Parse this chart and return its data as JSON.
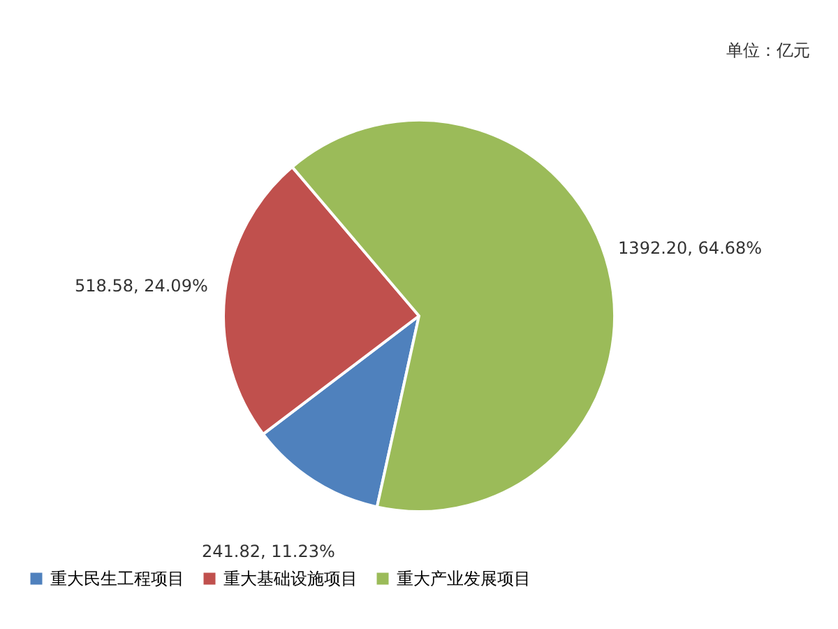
{
  "chart_data": {
    "type": "pie",
    "annotations": [
      "单位：亿元"
    ],
    "categories": [
      "重大民生工程项目",
      "重大基础设施项目",
      "重大产业发展项目"
    ],
    "values": [
      241.82,
      518.58,
      1392.2
    ],
    "value_labels": [
      "241.82, 11.23%",
      "518.58, 24.09%",
      "1392.20, 64.68%"
    ],
    "colors": [
      "#4f81bd",
      "#c0504d",
      "#9bbb59"
    ],
    "legend": "bottom"
  }
}
